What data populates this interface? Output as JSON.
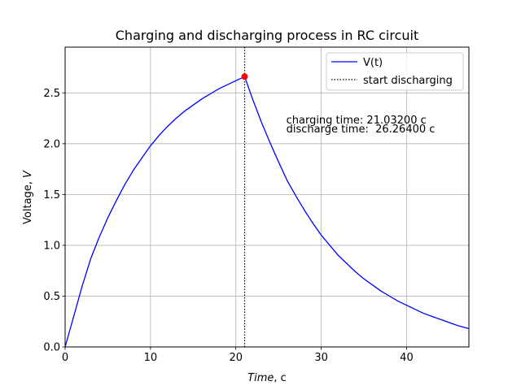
{
  "chart_data": {
    "type": "line",
    "title": "Charging and discharging process in RC circuit",
    "xlabel_main": "Time",
    "xlabel_unit": ", c",
    "ylabel_main": "Voltage, ",
    "ylabel_unit": "V",
    "xlim": [
      0,
      47.3
    ],
    "ylim": [
      0,
      2.95
    ],
    "xticks": [
      0,
      10,
      20,
      30,
      40
    ],
    "xtick_labels": [
      "0",
      "10",
      "20",
      "30",
      "40"
    ],
    "yticks": [
      0.0,
      0.5,
      1.0,
      1.5,
      2.0,
      2.5
    ],
    "ytick_labels": [
      "0.0",
      "0.5",
      "1.0",
      "1.5",
      "2.0",
      "2.5"
    ],
    "grid": true,
    "legend_position": "top-right",
    "series": [
      {
        "name": "V(t)",
        "color": "#0000ff",
        "style": "solid",
        "x": [
          0,
          1,
          2,
          3,
          4,
          5,
          6,
          7,
          8,
          9,
          10,
          11,
          12,
          13,
          14,
          15,
          16,
          17,
          18,
          19,
          20,
          21.03,
          22,
          23,
          24,
          25,
          26,
          27,
          28,
          29,
          30,
          31,
          32,
          33,
          34,
          35,
          36,
          37,
          38,
          39,
          40,
          41,
          42,
          43,
          44,
          45,
          46,
          47.3
        ],
        "y": [
          0.0,
          0.3,
          0.6,
          0.87,
          1.08,
          1.27,
          1.44,
          1.6,
          1.74,
          1.86,
          1.98,
          2.08,
          2.17,
          2.25,
          2.32,
          2.38,
          2.44,
          2.49,
          2.54,
          2.58,
          2.62,
          2.66,
          2.43,
          2.21,
          2.01,
          1.82,
          1.64,
          1.49,
          1.35,
          1.22,
          1.1,
          1.0,
          0.9,
          0.82,
          0.74,
          0.67,
          0.61,
          0.55,
          0.5,
          0.45,
          0.41,
          0.37,
          0.33,
          0.3,
          0.27,
          0.24,
          0.21,
          0.18
        ]
      }
    ],
    "vertical_line": {
      "name": "start discharging",
      "x": 21.03,
      "color": "#000000",
      "style": "dotted"
    },
    "marker": {
      "x": 21.03,
      "y": 2.66,
      "color": "#ff0000"
    },
    "annotations": [
      {
        "text": "charging time: 21.03200 c",
        "x": 25.9,
        "y": 2.2
      },
      {
        "text": "discharge time:  26.26400 c",
        "x": 25.9,
        "y": 2.11
      }
    ]
  }
}
